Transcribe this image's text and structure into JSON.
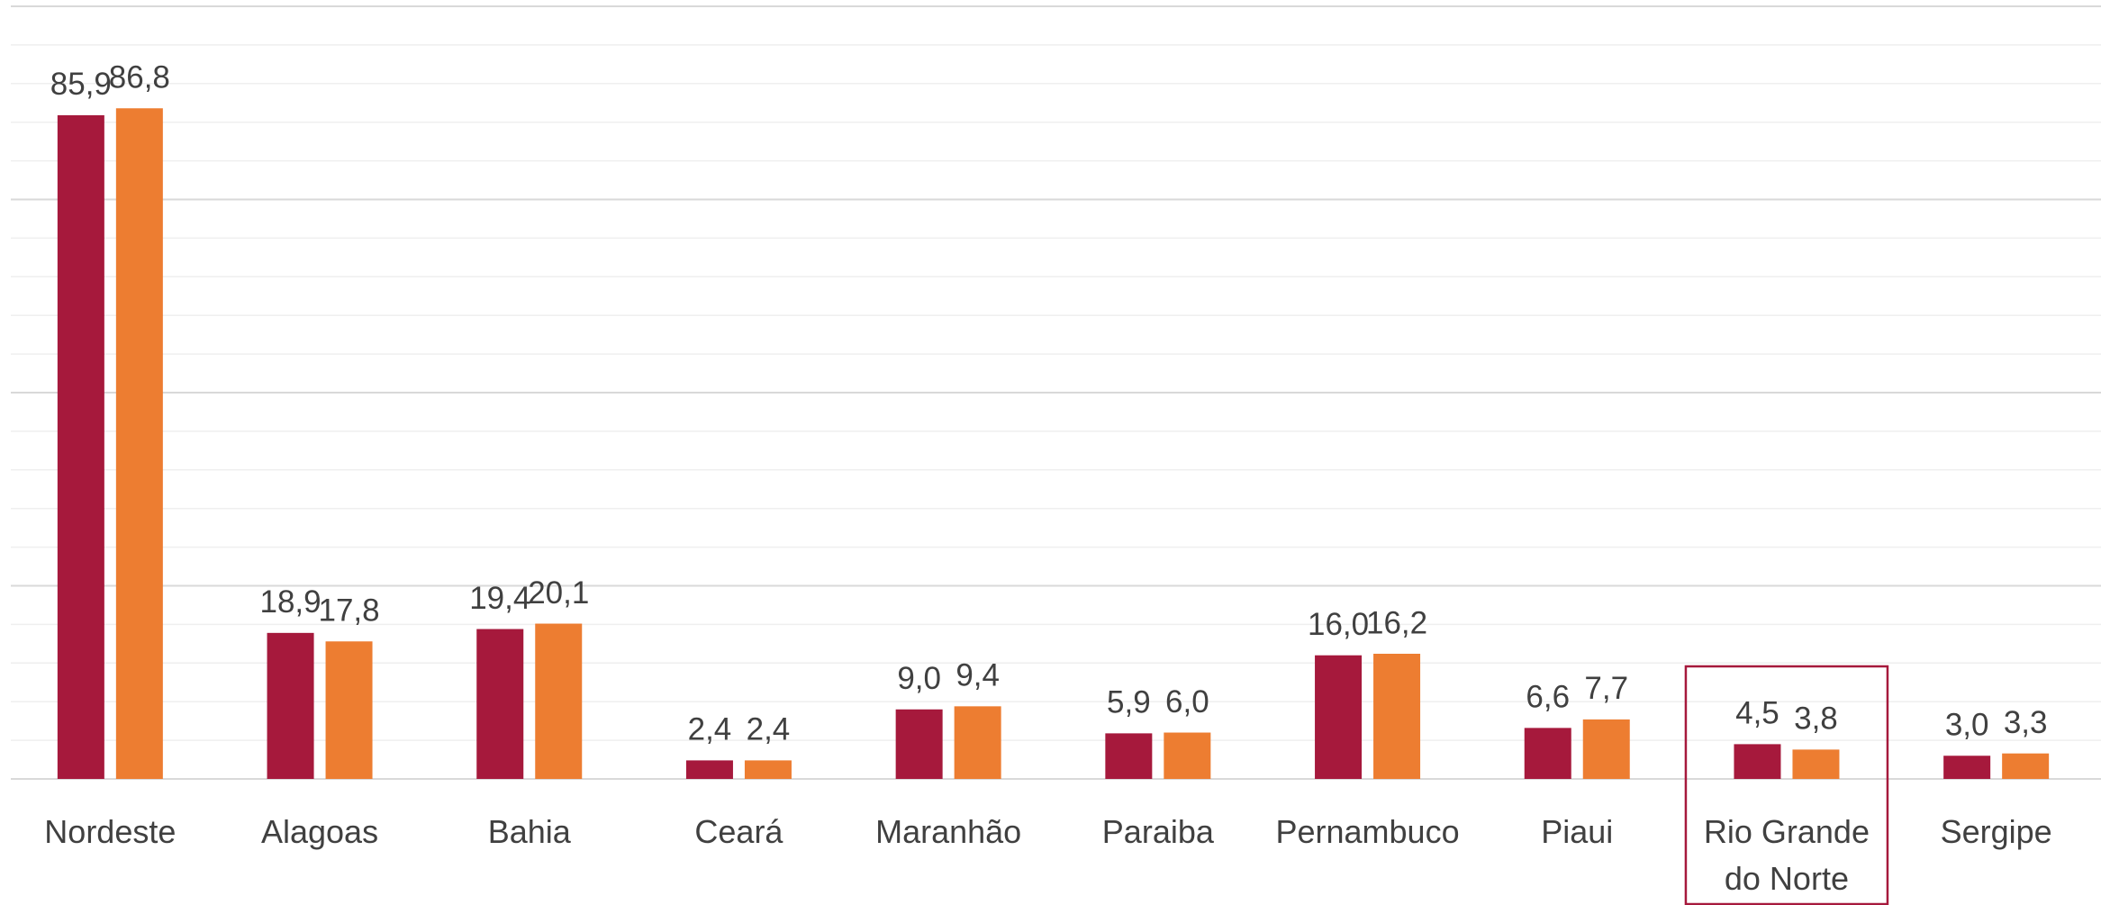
{
  "chart_data": {
    "type": "bar",
    "categories": [
      "Nordeste",
      "Alagoas",
      "Bahia",
      "Ceará",
      "Maranhão",
      "Paraiba",
      "Pernambuco",
      "Piaui",
      "Rio Grande do Norte",
      "Sergipe"
    ],
    "series": [
      {
        "color": "#a6193c",
        "values": [
          85.9,
          18.9,
          19.4,
          2.4,
          9.0,
          5.9,
          16.0,
          6.6,
          4.5,
          3.0
        ],
        "value_labels": [
          "85,9",
          "18,9",
          "19,4",
          "2,4",
          "9,0",
          "5,9",
          "16,0",
          "6,6",
          "4,5",
          "3,0"
        ]
      },
      {
        "color": "#ed7d31",
        "values": [
          86.8,
          17.8,
          20.1,
          2.4,
          9.4,
          6.0,
          16.2,
          7.7,
          3.8,
          3.3
        ],
        "value_labels": [
          "86,8",
          "17,8",
          "20,1",
          "2,4",
          "9,4",
          "6,0",
          "16,2",
          "7,7",
          "3,8",
          "3,3"
        ]
      }
    ],
    "ylim": [
      0,
      100
    ],
    "yticks": [
      0,
      25,
      50,
      75,
      100
    ],
    "minor_yticks": [
      5,
      10,
      15,
      20,
      30,
      35,
      40,
      45,
      55,
      60,
      65,
      70,
      80,
      85,
      90,
      95
    ],
    "grid": true,
    "highlight_category": 8
  }
}
